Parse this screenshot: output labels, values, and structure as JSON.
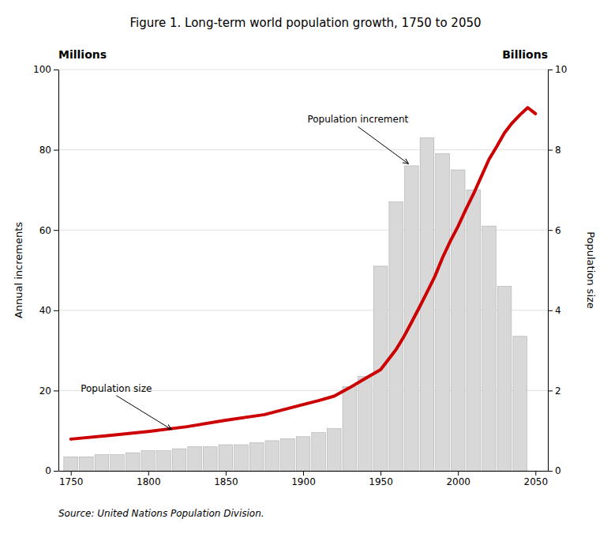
{
  "chart_data": {
    "type": "bar",
    "title": "Figure 1.  Long-term world population growth, 1750 to 2050",
    "y_label": "Annual increments",
    "y2_label": "Population size",
    "y_unit": "Millions",
    "y2_unit": "Billions",
    "source": "Source:  United Nations Population Division.",
    "series": [
      {
        "type": "bar",
        "color": "#d8d8d8",
        "x": [
          1750,
          1760,
          1770,
          1780,
          1790,
          1800,
          1810,
          1820,
          1830,
          1840,
          1850,
          1860,
          1870,
          1880,
          1890,
          1900,
          1910,
          1920,
          1930,
          1940,
          1950,
          1960,
          1970,
          1980,
          1990,
          2000,
          2010,
          2020,
          2030,
          2040
        ],
        "values": [
          3.5,
          3.5,
          4.0,
          4.0,
          4.5,
          5.0,
          5.0,
          5.5,
          6.0,
          6.0,
          6.5,
          6.5,
          7.0,
          7.5,
          8.0,
          8.5,
          9.5,
          10.5,
          21.0,
          23.5,
          51.0,
          67.0,
          76.0,
          83.0,
          79.0,
          75.0,
          70.0,
          61.0,
          46.0,
          33.5
        ]
      },
      {
        "type": "line",
        "axis": "y2",
        "color": "#cc0000",
        "x": [
          1750,
          1775,
          1800,
          1825,
          1850,
          1875,
          1900,
          1910,
          1920,
          1930,
          1940,
          1950,
          1955,
          1960,
          1965,
          1970,
          1975,
          1980,
          1985,
          1990,
          1995,
          2000,
          2005,
          2010,
          2015,
          2020,
          2025,
          2030,
          2035,
          2040,
          2045,
          2050
        ],
        "values": [
          0.79,
          0.88,
          0.98,
          1.1,
          1.26,
          1.4,
          1.65,
          1.75,
          1.86,
          2.07,
          2.3,
          2.52,
          2.77,
          3.02,
          3.34,
          3.7,
          4.07,
          4.45,
          4.84,
          5.31,
          5.72,
          6.09,
          6.51,
          6.9,
          7.33,
          7.76,
          8.08,
          8.42,
          8.67,
          8.87,
          9.05,
          8.9
        ]
      }
    ],
    "xlim": [
      1742,
      2058
    ],
    "xticks": [
      1750,
      1800,
      1850,
      1900,
      1950,
      2000,
      2050
    ],
    "ylim": [
      0,
      100
    ],
    "yticks": [
      0,
      20,
      40,
      60,
      80,
      100
    ],
    "y2lim": [
      0,
      10
    ],
    "y2ticks": [
      0,
      2,
      4,
      6,
      8,
      10
    ],
    "grid": true,
    "annotations": [
      {
        "text": "Population increment",
        "x": 1968,
        "y": 76.5
      },
      {
        "text": "Population size",
        "x": 1815,
        "y": 1.03,
        "axis": "y2"
      }
    ]
  }
}
